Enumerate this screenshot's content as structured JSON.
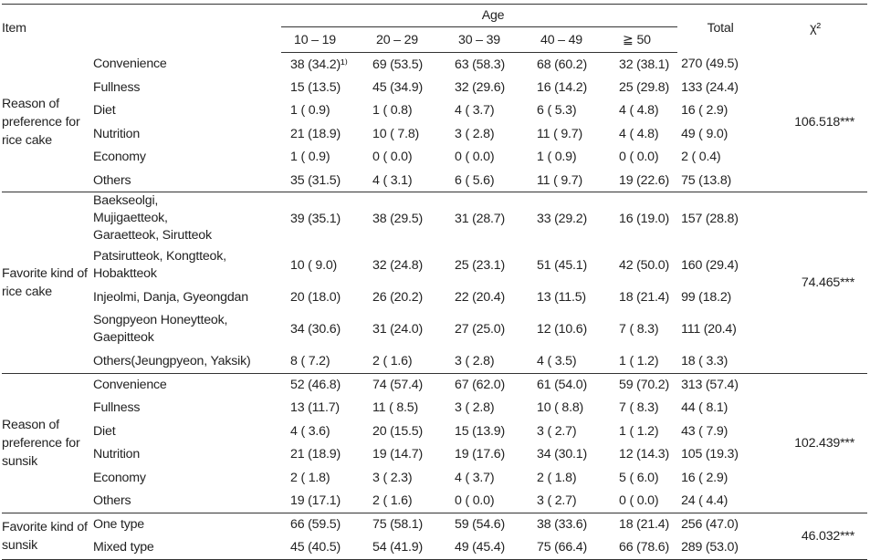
{
  "header": {
    "item": "Item",
    "age": "Age",
    "age_groups": [
      "10 – 19",
      "20 – 29",
      "30 – 39",
      "40 – 49",
      "≧ 50"
    ],
    "total": "Total",
    "chi": "χ²"
  },
  "groups": [
    {
      "label": "Reason of preference for rice cake",
      "chi": "106.518***",
      "rows": [
        {
          "item": "Convenience",
          "cells": [
            "38 (34.2)¹⁾",
            "69 (53.5)",
            "63 (58.3)",
            "68 (60.2)",
            "32 (38.1)"
          ],
          "total": "270 (49.5)"
        },
        {
          "item": "Fullness",
          "cells": [
            "15 (13.5)",
            "45 (34.9)",
            "32 (29.6)",
            "16 (14.2)",
            "25 (29.8)"
          ],
          "total": "133 (24.4)"
        },
        {
          "item": "Diet",
          "cells": [
            "1 ( 0.9)",
            "1 ( 0.8)",
            "4 ( 3.7)",
            "6 ( 5.3)",
            "4 ( 4.8)"
          ],
          "total": "16 ( 2.9)"
        },
        {
          "item": "Nutrition",
          "cells": [
            "21 (18.9)",
            "10 ( 7.8)",
            "3 ( 2.8)",
            "11 ( 9.7)",
            "4 ( 4.8)"
          ],
          "total": "49 ( 9.0)"
        },
        {
          "item": "Economy",
          "cells": [
            "1 ( 0.9)",
            "0 ( 0.0)",
            "0 ( 0.0)",
            "1 ( 0.9)",
            "0 ( 0.0)"
          ],
          "total": "2 ( 0.4)"
        },
        {
          "item": "Others",
          "cells": [
            "35 (31.5)",
            "4 ( 3.1)",
            "6 ( 5.6)",
            "11 ( 9.7)",
            "19 (22.6)"
          ],
          "total": "75 (13.8)"
        }
      ]
    },
    {
      "label": "Favorite kind of rice cake",
      "chi": "74.465***",
      "rows": [
        {
          "item": "Baekseolgi, Mujigaetteok, Garaetteok, Sirutteok",
          "cells": [
            "39 (35.1)",
            "38 (29.5)",
            "31 (28.7)",
            "33 (29.2)",
            "16 (19.0)"
          ],
          "total": "157 (28.8)"
        },
        {
          "item": "Patsirutteok, Kongtteok, Hobaktteok",
          "cells": [
            "10 ( 9.0)",
            "32 (24.8)",
            "25 (23.1)",
            "51 (45.1)",
            "42 (50.0)"
          ],
          "total": "160 (29.4)"
        },
        {
          "item": "Injeolmi, Danja, Gyeongdan",
          "cells": [
            "20 (18.0)",
            "26 (20.2)",
            "22 (20.4)",
            "13 (11.5)",
            "18 (21.4)"
          ],
          "total": "99 (18.2)"
        },
        {
          "item": "Songpyeon Honeytteok, Gaepitteok",
          "cells": [
            "34 (30.6)",
            "31 (24.0)",
            "27 (25.0)",
            "12 (10.6)",
            "7 ( 8.3)"
          ],
          "total": "111 (20.4)"
        },
        {
          "item": "Others(Jeungpyeon, Yaksik)",
          "cells": [
            "8 ( 7.2)",
            "2 ( 1.6)",
            "3 ( 2.8)",
            "4 ( 3.5)",
            "1 ( 1.2)"
          ],
          "total": "18 ( 3.3)"
        }
      ]
    },
    {
      "label": "Reason of preference for sunsik",
      "chi": "102.439***",
      "rows": [
        {
          "item": "Convenience",
          "cells": [
            "52 (46.8)",
            "74 (57.4)",
            "67 (62.0)",
            "61 (54.0)",
            "59 (70.2)"
          ],
          "total": "313 (57.4)"
        },
        {
          "item": "Fullness",
          "cells": [
            "13 (11.7)",
            "11 ( 8.5)",
            "3 ( 2.8)",
            "10 ( 8.8)",
            "7 ( 8.3)"
          ],
          "total": "44 ( 8.1)"
        },
        {
          "item": "Diet",
          "cells": [
            "4 ( 3.6)",
            "20 (15.5)",
            "15 (13.9)",
            "3 ( 2.7)",
            "1 ( 1.2)"
          ],
          "total": "43 ( 7.9)"
        },
        {
          "item": "Nutrition",
          "cells": [
            "21 (18.9)",
            "19 (14.7)",
            "19 (17.6)",
            "34 (30.1)",
            "12 (14.3)"
          ],
          "total": "105 (19.3)"
        },
        {
          "item": "Economy",
          "cells": [
            "2 ( 1.8)",
            "3 ( 2.3)",
            "4 ( 3.7)",
            "2 ( 1.8)",
            "5 ( 6.0)"
          ],
          "total": "16 ( 2.9)"
        },
        {
          "item": "Others",
          "cells": [
            "19 (17.1)",
            "2 ( 1.6)",
            "0 ( 0.0)",
            "3 ( 2.7)",
            "0 ( 0.0)"
          ],
          "total": "24 ( 4.4)"
        }
      ]
    },
    {
      "label": "Favorite kind of sunsik",
      "chi": "46.032***",
      "rows": [
        {
          "item": "One type",
          "cells": [
            "66 (59.5)",
            "75 (58.1)",
            "59 (54.6)",
            "38 (33.6)",
            "18 (21.4)"
          ],
          "total": "256 (47.0)"
        },
        {
          "item": "Mixed type",
          "cells": [
            "45 (40.5)",
            "54 (41.9)",
            "49 (45.4)",
            "75 (66.4)",
            "66 (78.6)"
          ],
          "total": "289 (53.0)"
        }
      ]
    }
  ]
}
